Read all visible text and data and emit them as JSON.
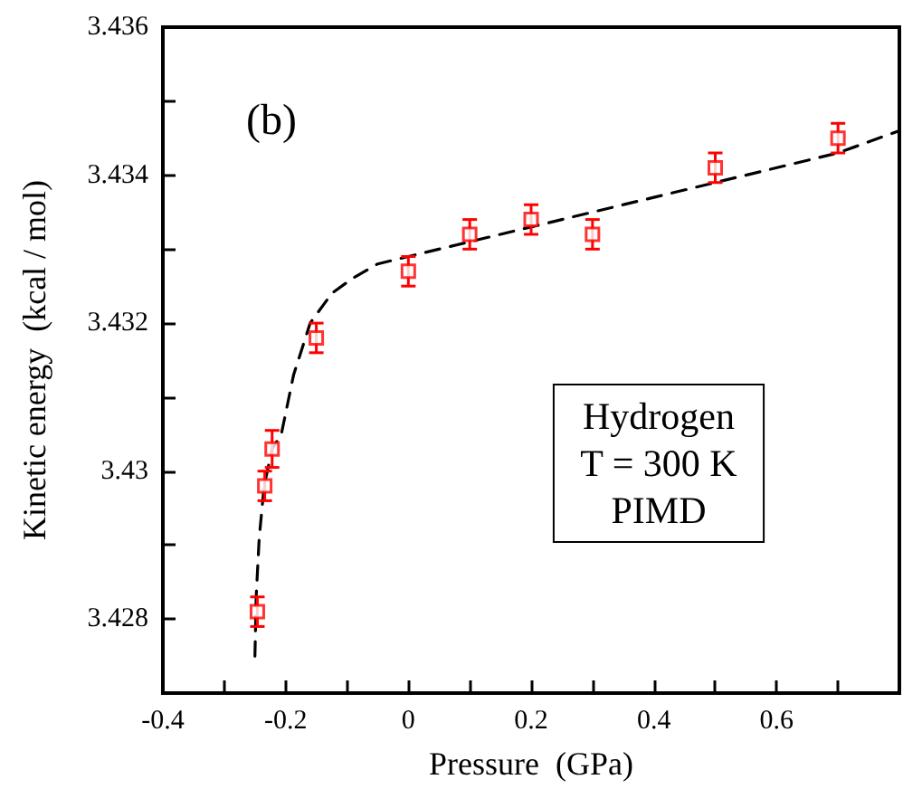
{
  "chart_data": {
    "type": "scatter",
    "xlabel": "Pressure  (GPa)",
    "ylabel": "Kinetic energy  (kcal / mol)",
    "annotations": [
      "(b)",
      "Hydrogen\nT = 300 K\nPIMD"
    ],
    "xlim": [
      -0.4,
      0.8
    ],
    "ylim": [
      3.427,
      3.436
    ],
    "xticks": [
      -0.4,
      {
        "value": -0.3,
        "label": null
      },
      -0.2,
      {
        "value": -0.1,
        "label": null
      },
      0,
      {
        "value": 0.1,
        "label": null
      },
      0.2,
      {
        "value": 0.3,
        "label": null
      },
      0.4,
      {
        "value": 0.5,
        "label": null
      },
      0.6,
      {
        "value": 0.7,
        "label": null
      }
    ],
    "yticks": [
      {
        "value": 3.427,
        "label": null
      },
      3.428,
      {
        "value": 3.429,
        "label": null
      },
      3.43,
      {
        "value": 3.431,
        "label": null
      },
      3.432,
      {
        "value": 3.433,
        "label": null
      },
      3.434,
      {
        "value": 3.435,
        "label": null
      },
      3.436
    ],
    "grid": false,
    "series": [
      {
        "color": "#ff0000",
        "marker": "square",
        "x": [
          -0.246,
          -0.234,
          -0.222,
          -0.15,
          0,
          0.1,
          0.2,
          0.3,
          0.5,
          0.7
        ],
        "values": [
          3.4281,
          3.4298,
          3.4303,
          3.4318,
          3.4327,
          3.4332,
          3.4334,
          3.4332,
          3.4341,
          3.4345
        ],
        "errors": [
          0.0002,
          0.0002,
          0.00025,
          0.0002,
          0.0002,
          0.0002,
          0.0002,
          0.0002,
          0.0002,
          0.0002
        ]
      },
      {
        "type": "line",
        "color": "#000000",
        "marker": "none",
        "line_style": "dashed",
        "x": [
          -0.25,
          -0.248,
          -0.243,
          -0.235,
          -0.222,
          -0.207,
          -0.187,
          -0.16,
          -0.125,
          -0.092,
          -0.05,
          0,
          0.1,
          0.3,
          0.5,
          0.7,
          0.8
        ],
        "values": [
          3.4275,
          3.4283,
          3.4291,
          3.4298,
          3.4303,
          3.4305,
          3.4313,
          3.432,
          3.4324,
          3.4326,
          3.4328,
          3.4329,
          3.4331,
          3.4335,
          3.4339,
          3.4343,
          3.4346
        ]
      }
    ]
  }
}
